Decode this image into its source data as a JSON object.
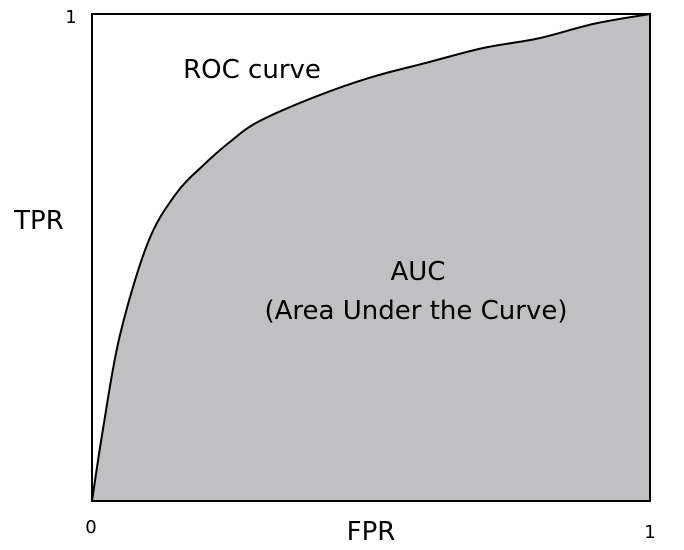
{
  "chart_data": {
    "type": "area",
    "xlabel": "FPR",
    "ylabel": "TPR",
    "xlim": [
      0,
      1
    ],
    "ylim": [
      0,
      1
    ],
    "x_tick_labels": [
      "0",
      "1"
    ],
    "y_tick_labels": [
      "1"
    ],
    "grid": false,
    "legend": "none",
    "series": [
      {
        "name": "ROC curve",
        "x": [
          0,
          0.02,
          0.05,
          0.1,
          0.15,
          0.2,
          0.25,
          0.3,
          0.4,
          0.5,
          0.6,
          0.7,
          0.8,
          0.9,
          1
        ],
        "y": [
          0,
          0.15,
          0.34,
          0.53,
          0.63,
          0.69,
          0.74,
          0.78,
          0.83,
          0.87,
          0.9,
          0.93,
          0.95,
          0.98,
          1
        ]
      }
    ],
    "annotations": {
      "curve_label": "ROC curve",
      "area_label": "AUC",
      "area_sublabel": "(Area Under the Curve)"
    }
  },
  "colors": {
    "area_fill": "#c0bfc1",
    "curve": "#000000",
    "frame": "#000000"
  }
}
